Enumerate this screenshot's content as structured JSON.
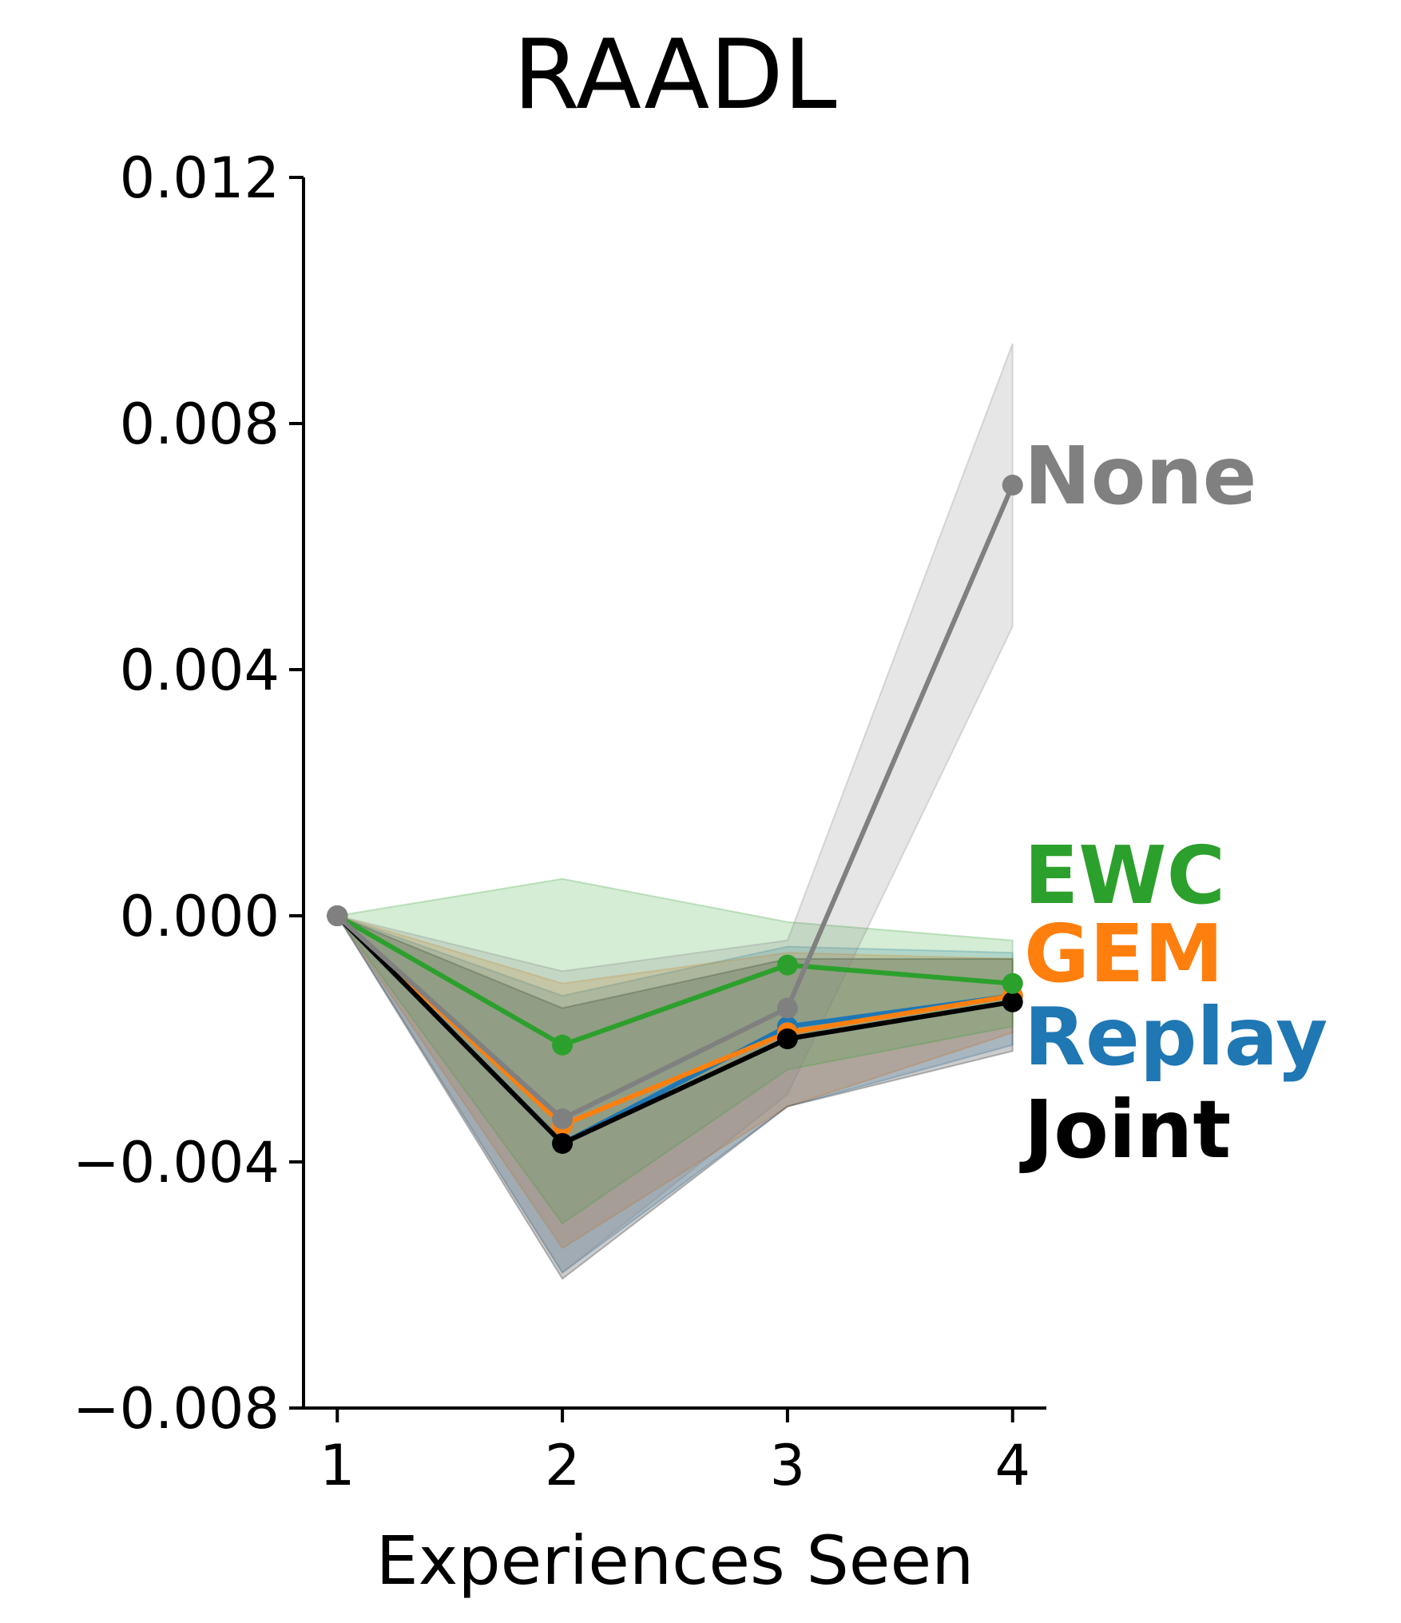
{
  "chart_data": {
    "type": "line",
    "title": "RAADL",
    "xlabel": "Experiences Seen",
    "ylabel": "",
    "x": [
      1,
      2,
      3,
      4
    ],
    "x_tick_labels": [
      "1",
      "2",
      "3",
      "4"
    ],
    "y_ticks": [
      -0.008,
      -0.004,
      0.0,
      0.004,
      0.008,
      0.012
    ],
    "y_tick_labels": [
      "−0.008",
      "−0.004",
      "0.000",
      "0.004",
      "0.008",
      "0.012"
    ],
    "ylim": [
      -0.008,
      0.012
    ],
    "xlim": [
      0.85,
      4.15
    ],
    "grid": false,
    "legend": "inline labels at right end of lines",
    "series": [
      {
        "name": "Replay",
        "color": "#1f77b4",
        "values": [
          0.0,
          -0.0037,
          -0.0018,
          -0.0013
        ],
        "lower": [
          0.0,
          -0.0058,
          -0.0031,
          -0.0021
        ],
        "upper": [
          0.0,
          -0.0013,
          -0.0005,
          -0.0006
        ]
      },
      {
        "name": "GEM",
        "color": "#ff7f0e",
        "values": [
          0.0,
          -0.0034,
          -0.0019,
          -0.0013
        ],
        "lower": [
          0.0,
          -0.0054,
          -0.0031,
          -0.0019
        ],
        "upper": [
          0.0,
          -0.0011,
          -0.0006,
          -0.0007
        ]
      },
      {
        "name": "Joint",
        "color": "#000000",
        "values": [
          0.0,
          -0.0037,
          -0.002,
          -0.0014
        ],
        "lower": [
          0.0,
          -0.0059,
          -0.0031,
          -0.0022
        ],
        "upper": [
          0.0,
          -0.0015,
          -0.0007,
          -0.0007
        ]
      },
      {
        "name": "EWC",
        "color": "#2ca02c",
        "values": [
          0.0,
          -0.0021,
          -0.0008,
          -0.0011
        ],
        "lower": [
          0.0,
          -0.005,
          -0.0025,
          -0.0018
        ],
        "upper": [
          0.0,
          0.0006,
          -0.0001,
          -0.0004
        ]
      },
      {
        "name": "None",
        "color": "#808080",
        "values": [
          0.0,
          -0.0033,
          -0.0015,
          0.007
        ],
        "lower": [
          0.0,
          -0.0058,
          -0.0029,
          0.0047
        ],
        "upper": [
          0.0,
          -0.0009,
          -0.0004,
          0.0093
        ]
      }
    ],
    "labels": [
      {
        "text": "None",
        "color": "#808080"
      },
      {
        "text": "EWC",
        "color": "#2ca02c"
      },
      {
        "text": "GEM",
        "color": "#ff7f0e"
      },
      {
        "text": "Replay",
        "color": "#1f77b4"
      },
      {
        "text": "Joint",
        "color": "#000000"
      }
    ]
  }
}
